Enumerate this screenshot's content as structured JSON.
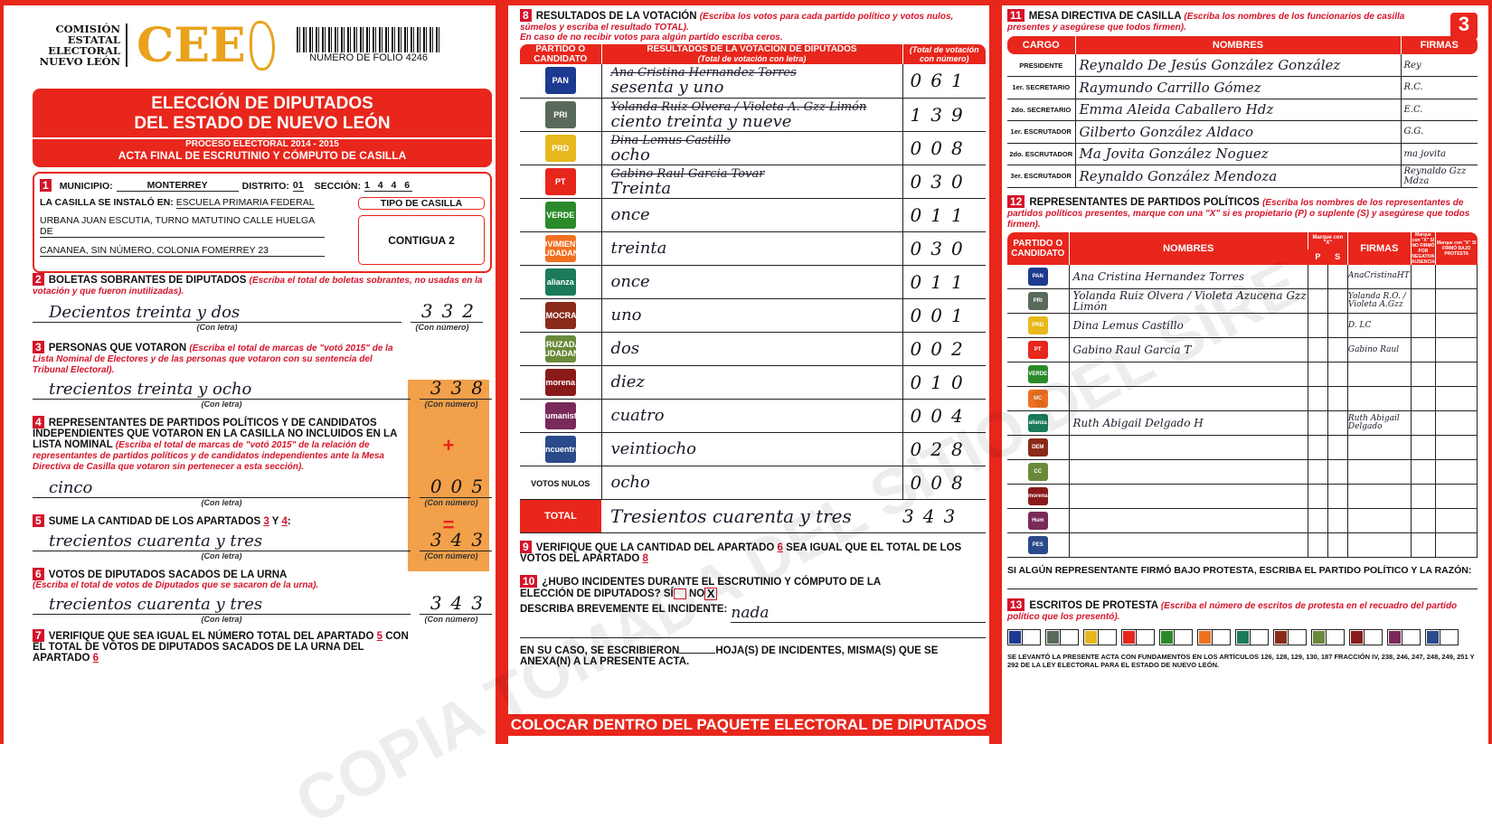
{
  "colors": {
    "accent": "#e8261c",
    "brand_gold": "#e8a21c",
    "orange_box": "#f2a04a"
  },
  "header": {
    "org_lines": [
      "COMISIÓN",
      "ESTATAL",
      "ELECTORAL",
      "NUEVO LEÓN"
    ],
    "logo_text": "CEE",
    "folio": "NUMERO DE FOLIO 4246",
    "title1": "ELECCIÓN DE DIPUTADOS",
    "title2": "DEL ESTADO DE NUEVO LEÓN",
    "process": "PROCESO ELECTORAL 2014 - 2015",
    "acta": "ACTA FINAL DE ESCRUTINIO Y CÓMPUTO DE CASILLA"
  },
  "s1": {
    "num": "1",
    "municipio_label": "MUNICIPIO:",
    "municipio": "MONTERREY",
    "distrito_label": "DISTRITO:",
    "distrito": "01",
    "seccion_label": "SECCIÓN:",
    "seccion": "1 4 4 6",
    "instalo_label": "LA CASILLA SE INSTALÓ EN:",
    "address1": "ESCUELA PRIMARIA FEDERAL",
    "address2": "URBANA JUAN ESCUTIA, TURNO MATUTINO CALLE HUELGA DE",
    "address3": "CANANEA, SIN NÚMERO, COLONIA FOMERREY 23",
    "tipo_label": "TIPO DE CASILLA",
    "tipo": "CONTIGUA 2"
  },
  "con_letra": "(Con letra)",
  "con_numero": "(Con número)",
  "s2": {
    "num": "2",
    "title": "BOLETAS SOBRANTES DE DIPUTADOS",
    "inst": "(Escriba el total de boletas sobrantes, no usadas en la votación y que fueron inutilizadas).",
    "letra": "Decientos treinta y dos",
    "numero": "332"
  },
  "s3": {
    "num": "3",
    "title": "PERSONAS QUE VOTARON",
    "inst": "(Escriba el total de marcas de \"votó 2015\" de la Lista Nominal de Electores y de las personas que votaron con su sentencia del Tribunal Electoral).",
    "letra": "trecientos treinta y ocho",
    "numero": "338"
  },
  "s4": {
    "num": "4",
    "title": "REPRESENTANTES DE PARTIDOS POLÍTICOS Y DE CANDIDATOS INDEPENDIENTES QUE VOTARON EN LA CASILLA NO INCLUIDOS EN LA LISTA NOMINAL",
    "inst": "(Escriba el total de marcas de \"votó 2015\" de la relación de representantes de partidos políticos y de candidatos independientes ante la Mesa Directiva de Casilla que votaron sin pertenecer a esta sección).",
    "letra": "cinco",
    "numero": "005",
    "plus": "+",
    "equals": "="
  },
  "s5": {
    "num": "5",
    "title": "SUME LA CANTIDAD DE LOS APARTADOS",
    "a": "3",
    "y": "Y",
    "b": "4",
    "colon": ":",
    "letra": "trecientos cuarenta y tres",
    "numero": "343"
  },
  "s6": {
    "num": "6",
    "title": "VOTOS DE DIPUTADOS SACADOS DE LA URNA",
    "inst": "(Escriba el total de votos de Diputados que se sacaron de la urna).",
    "letra": "trecientos cuarenta y tres",
    "numero": "343"
  },
  "s7": {
    "num": "7",
    "t1": "VERIFIQUE QUE SEA IGUAL EL NÚMERO TOTAL DEL APARTADO",
    "a": "5",
    "t2": "CON EL TOTAL DE VOTOS DE DIPUTADOS SACADOS DE LA URNA DEL APARTADO",
    "b": "6"
  },
  "s8": {
    "num": "8",
    "title": "RESULTADOS DE LA VOTACIÓN",
    "inst1": "(Escriba los votos para cada partido político y votos nulos, súmelos y escriba el resultado TOTAL).",
    "inst2": "En caso de no recibir votos para algún partido escriba ceros.",
    "col1": "PARTIDO O CANDIDATO",
    "col2": "RESULTADOS DE LA VOTACIÓN DE DIPUTADOS",
    "col2sub": "(Total de votación con letra)",
    "col3": "(Total de votación con número)",
    "rows": [
      {
        "party": "PAN",
        "color": "#1c3a8f",
        "struck": "Ana Cristina Hernandez Torres",
        "letra": "sesenta y uno",
        "numero": "061"
      },
      {
        "party": "PRI",
        "color": "#5a6a5a",
        "struck": "Yolanda Ruiz Olvera / Violeta A. Gzz Limón",
        "letra": "ciento treinta y nueve",
        "numero": "139"
      },
      {
        "party": "PRD",
        "color": "#e8b81c",
        "struck": "Dina Lemus Castillo",
        "letra": "ocho",
        "numero": "008"
      },
      {
        "party": "PT",
        "color": "#e8261c",
        "struck": "Gabino Raul Garcia Tovar",
        "letra": "Treinta",
        "numero": "030"
      },
      {
        "party": "VERDE",
        "color": "#2a8a2a",
        "struck": "",
        "letra": "once",
        "numero": "011"
      },
      {
        "party": "MOVIMIENTO CIUDADANO",
        "color": "#f07020",
        "struck": "",
        "letra": "treinta",
        "numero": "030"
      },
      {
        "party": "alianza",
        "color": "#1a7a5a",
        "struck": "",
        "letra": "once",
        "numero": "011"
      },
      {
        "party": "DEMOCRATA",
        "color": "#8a2a1a",
        "struck": "",
        "letra": "uno",
        "numero": "001"
      },
      {
        "party": "CRUZADA CIUDADANA",
        "color": "#6a8a3a",
        "struck": "",
        "letra": "dos",
        "numero": "002"
      },
      {
        "party": "morena",
        "color": "#8a1a1a",
        "struck": "",
        "letra": "diez",
        "numero": "010"
      },
      {
        "party": "Humanista",
        "color": "#7a2a5a",
        "struck": "",
        "letra": "cuatro",
        "numero": "004"
      },
      {
        "party": "encuentro",
        "color": "#2a4a8a",
        "struck": "",
        "letra": "veintiocho",
        "numero": "028"
      },
      {
        "party": "VOTOS NULOS",
        "color": "",
        "struck": "",
        "letra": "ocho",
        "numero": "008"
      }
    ],
    "total_label": "TOTAL",
    "total_letra": "Tresientos cuarenta y tres",
    "total_numero": "343"
  },
  "s9": {
    "num": "9",
    "t1": "VERIFIQUE QUE LA CANTIDAD DEL APARTADO",
    "a": "6",
    "t2": "SEA IGUAL QUE EL TOTAL DE LOS VOTOS DEL APARTADO",
    "b": "8"
  },
  "s10": {
    "num": "10",
    "question": "¿HUBO INCIDENTES DURANTE EL ESCRUTINIO Y CÓMPUTO DE LA ELECCIÓN DE DIPUTADOS?",
    "si": "SÍ",
    "no": "NO",
    "no_mark": "X",
    "describe": "DESCRIBA BREVEMENTE EL INCIDENTE:",
    "describe_value": "nada",
    "hojas1": "EN SU CASO, SE ESCRIBIERON",
    "hojas2": "HOJA(S) DE INCIDENTES, MISMA(S) QUE SE ANEXA(N) A LA PRESENTE ACTA."
  },
  "s11": {
    "num": "11",
    "page": "3",
    "title": "MESA DIRECTIVA DE CASILLA",
    "inst": "(Escriba los nombres de los funcionarios de casilla presentes y asegúrese que todos firmen).",
    "col1": "CARGO",
    "col2": "NOMBRES",
    "col3": "FIRMAS",
    "rows": [
      {
        "cargo": "PRESIDENTE",
        "nombre": "Reynaldo De Jesús González González",
        "firma": "Rey"
      },
      {
        "cargo": "1er. SECRETARIO",
        "nombre": "Raymundo Carrillo Gómez",
        "firma": "R.C."
      },
      {
        "cargo": "2do. SECRETARIO",
        "nombre": "Emma Aleida Caballero Hdz",
        "firma": "E.C."
      },
      {
        "cargo": "1er. ESCRUTADOR",
        "nombre": "Gilberto González Aldaco",
        "firma": "G.G."
      },
      {
        "cargo": "2do. ESCRUTADOR",
        "nombre": "Ma Jovita González Noguez",
        "firma": "ma jovita"
      },
      {
        "cargo": "3er. ESCRUTADOR",
        "nombre": "Reynaldo González Mendoza",
        "firma": "Reynaldo Gzz Mdza"
      }
    ]
  },
  "s12": {
    "num": "12",
    "title": "REPRESENTANTES DE PARTIDOS POLÍTICOS",
    "inst": "(Escriba los nombres de los representantes de partidos políticos presentes, marque con una \"X\" si es propietario (P) o suplente (S) y asegúrese que todos firmen).",
    "col1": "PARTIDO O CANDIDATO",
    "col2": "NOMBRES",
    "col3": "Marque con \"X\"",
    "p": "P",
    "s": "S",
    "col4": "FIRMAS",
    "col5": "Marque con \"X\" SI NO FIRMÓ POR NEGATIVA AUSENCIA",
    "col6": "Marque con \"X\" SI FIRMÓ BAJO PROTESTA",
    "rows": [
      {
        "party": "PAN",
        "color": "#1c3a8f",
        "nombre": "Ana Cristina Hernandez Torres",
        "firma": "AnaCristinaHT"
      },
      {
        "party": "PRI",
        "color": "#5a6a5a",
        "nombre": "Yolanda Ruiz Olvera / Violeta Azucena Gzz Limón",
        "firma": "Yolanda R.O. / Violeta A.Gzz"
      },
      {
        "party": "PRD",
        "color": "#e8b81c",
        "nombre": "Dina Lemus Castillo",
        "firma": "D. LC"
      },
      {
        "party": "PT",
        "color": "#e8261c",
        "nombre": "Gabino Raul Garcia T",
        "firma": "Gabino Raul"
      },
      {
        "party": "VERDE",
        "color": "#2a8a2a",
        "nombre": "",
        "firma": ""
      },
      {
        "party": "MC",
        "color": "#f07020",
        "nombre": "",
        "firma": ""
      },
      {
        "party": "alianza",
        "color": "#1a7a5a",
        "nombre": "Ruth Abigail Delgado H",
        "firma": "Ruth Abigail Delgado"
      },
      {
        "party": "DEM",
        "color": "#8a2a1a",
        "nombre": "",
        "firma": ""
      },
      {
        "party": "CC",
        "color": "#6a8a3a",
        "nombre": "",
        "firma": ""
      },
      {
        "party": "morena",
        "color": "#8a1a1a",
        "nombre": "",
        "firma": ""
      },
      {
        "party": "Hum",
        "color": "#7a2a5a",
        "nombre": "",
        "firma": ""
      },
      {
        "party": "PES",
        "color": "#2a4a8a",
        "nombre": "",
        "firma": ""
      }
    ],
    "protesta_note": "SI ALGÚN REPRESENTANTE FIRMÓ BAJO PROTESTA, ESCRIBA EL PARTIDO POLÍTICO Y LA RAZÓN:"
  },
  "s13": {
    "num": "13",
    "title": "ESCRITOS DE PROTESTA",
    "inst": "(Escriba el número de escritos de protesta en el recuadro del partido político que los presentó).",
    "boxes": [
      "#1c3a8f",
      "#5a6a5a",
      "#e8b81c",
      "#e8261c",
      "#2a8a2a",
      "#f07020",
      "#1a7a5a",
      "#8a2a1a",
      "#6a8a3a",
      "#8a1a1a",
      "#7a2a5a",
      "#2a4a8a"
    ],
    "law": "SE LEVANTÓ LA PRESENTE ACTA CON FUNDAMENTOS EN LOS ARTÍCULOS 126, 128, 129, 130, 187 FRACCIÓN IV, 238, 246, 247, 248, 249, 251 Y 292 DE LA LEY ELECTORAL PARA EL ESTADO DE NUEVO LEÓN."
  },
  "footer": "COLOCAR DENTRO DEL PAQUETE ELECTORAL DE DIPUTADOS",
  "watermark": "COPIA TOMADA DEL SITIO DEL SIRE"
}
